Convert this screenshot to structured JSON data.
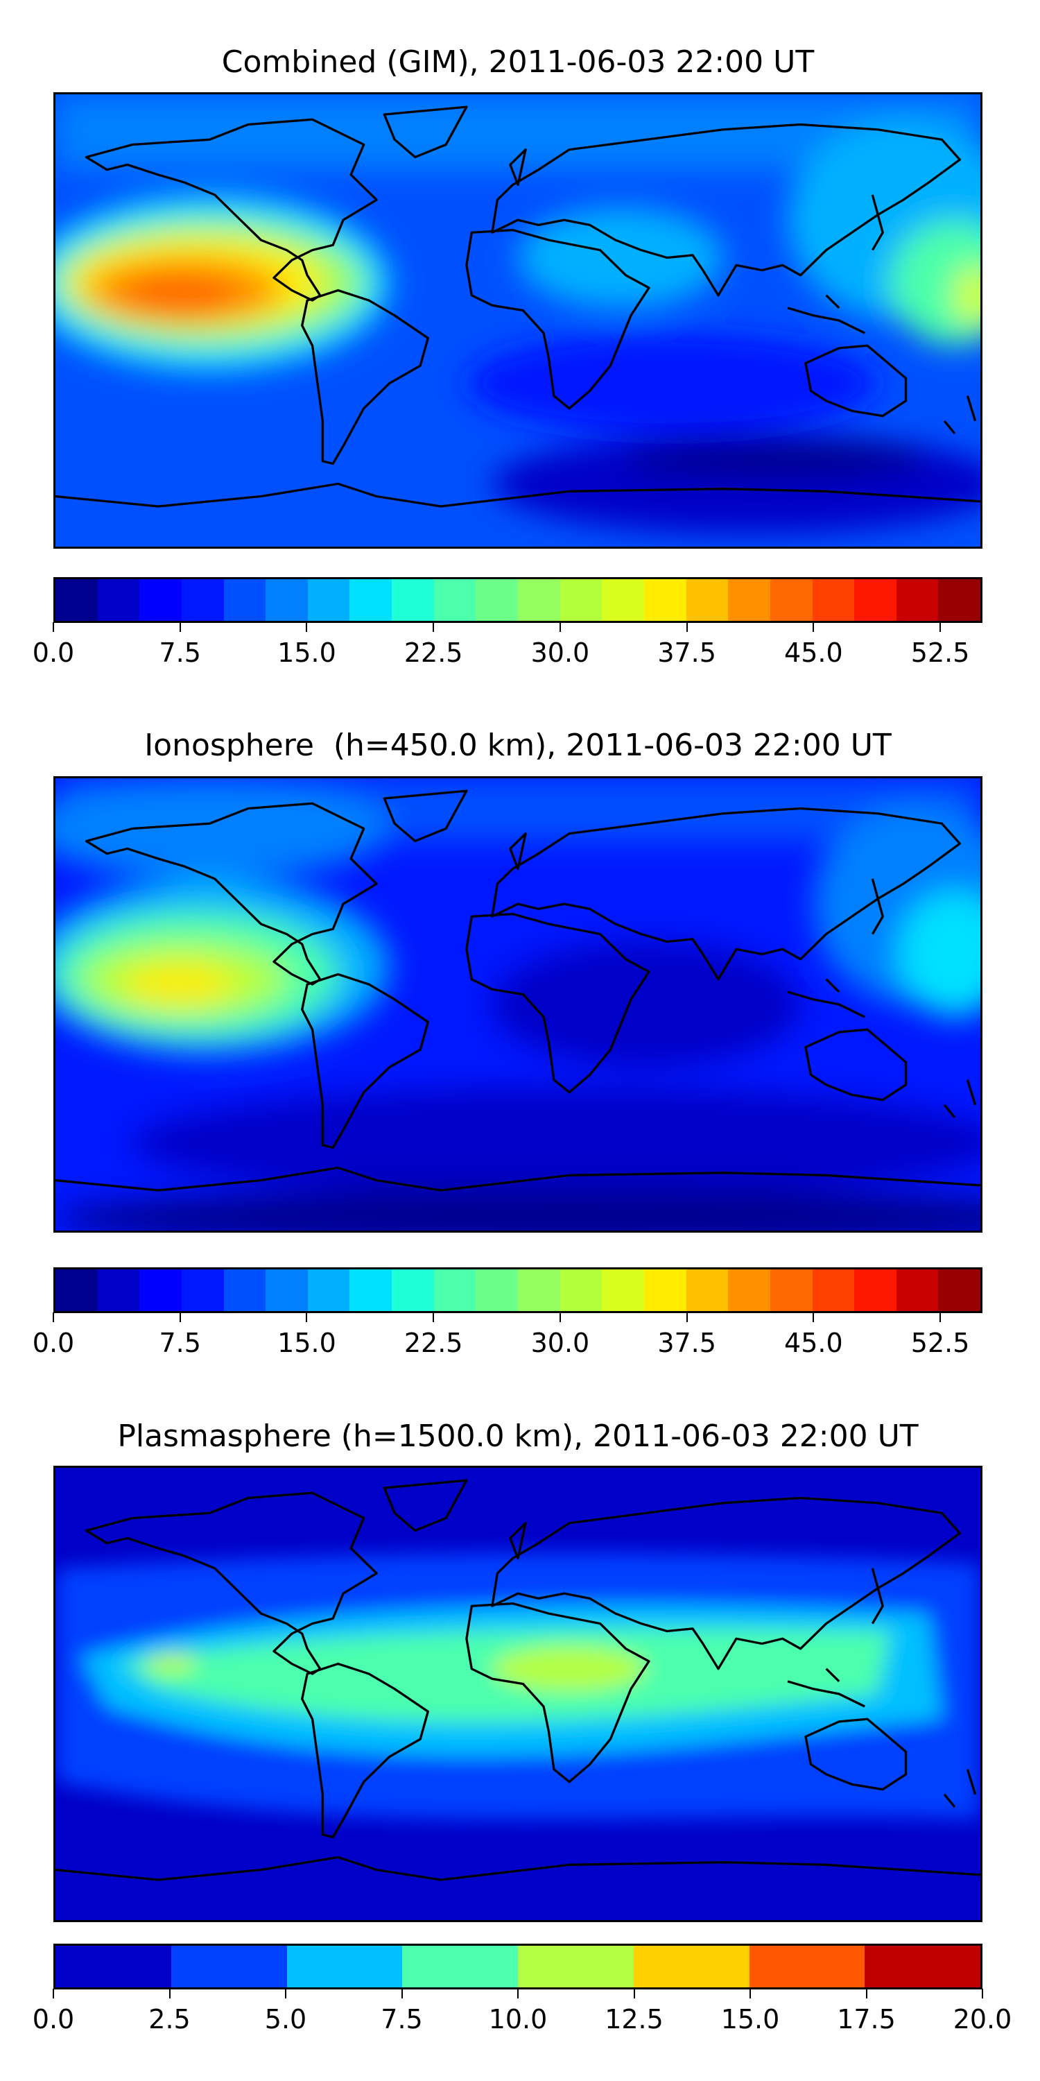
{
  "chart_data": [
    {
      "type": "heatmap",
      "title": "Combined (GIM), 2011-06-03 22:00 UT",
      "vmin": 0,
      "vmax": 55,
      "level_step": 2.5,
      "colorbar_ticks": [
        "0.0",
        "7.5",
        "15.0",
        "22.5",
        "30.0",
        "37.5",
        "45.0",
        "52.5"
      ],
      "colorbar_tick_values": [
        0,
        7.5,
        15,
        22.5,
        30,
        37.5,
        45,
        52.5
      ],
      "colors": [
        "#000090",
        "#0000c8",
        "#0000ff",
        "#0018ff",
        "#0050ff",
        "#0080ff",
        "#00b0ff",
        "#00e0ff",
        "#1effd8",
        "#4cffaa",
        "#6cff8a",
        "#96ff60",
        "#b4ff3c",
        "#d8ff1e",
        "#ffec00",
        "#ffc000",
        "#ff9000",
        "#ff6800",
        "#ff4000",
        "#ff1800",
        "#c80000",
        "#960000"
      ]
    },
    {
      "type": "heatmap",
      "title": "Ionosphere  (h=450.0 km), 2011-06-03 22:00 UT",
      "vmin": 0,
      "vmax": 55,
      "level_step": 2.5,
      "colorbar_ticks": [
        "0.0",
        "7.5",
        "15.0",
        "22.5",
        "30.0",
        "37.5",
        "45.0",
        "52.5"
      ],
      "colorbar_tick_values": [
        0,
        7.5,
        15,
        22.5,
        30,
        37.5,
        45,
        52.5
      ],
      "colors": [
        "#000090",
        "#0000c8",
        "#0000ff",
        "#0018ff",
        "#0050ff",
        "#0080ff",
        "#00b0ff",
        "#00e0ff",
        "#1effd8",
        "#4cffaa",
        "#6cff8a",
        "#96ff60",
        "#b4ff3c",
        "#d8ff1e",
        "#ffec00",
        "#ffc000",
        "#ff9000",
        "#ff6800",
        "#ff4000",
        "#ff1800",
        "#c80000",
        "#960000"
      ]
    },
    {
      "type": "heatmap",
      "title": "Plasmasphere (h=1500.0 km), 2011-06-03 22:00 UT",
      "vmin": 0,
      "vmax": 20,
      "level_step": 2.5,
      "colorbar_ticks": [
        "0.0",
        "2.5",
        "5.0",
        "7.5",
        "10.0",
        "12.5",
        "15.0",
        "17.5",
        "20.0"
      ],
      "colorbar_tick_values": [
        0,
        2.5,
        5,
        7.5,
        10,
        12.5,
        15,
        17.5,
        20
      ],
      "colors": [
        "#0000c8",
        "#0040ff",
        "#00c0ff",
        "#4cffae",
        "#b4ff44",
        "#ffd000",
        "#ff5800",
        "#c00000"
      ]
    }
  ]
}
